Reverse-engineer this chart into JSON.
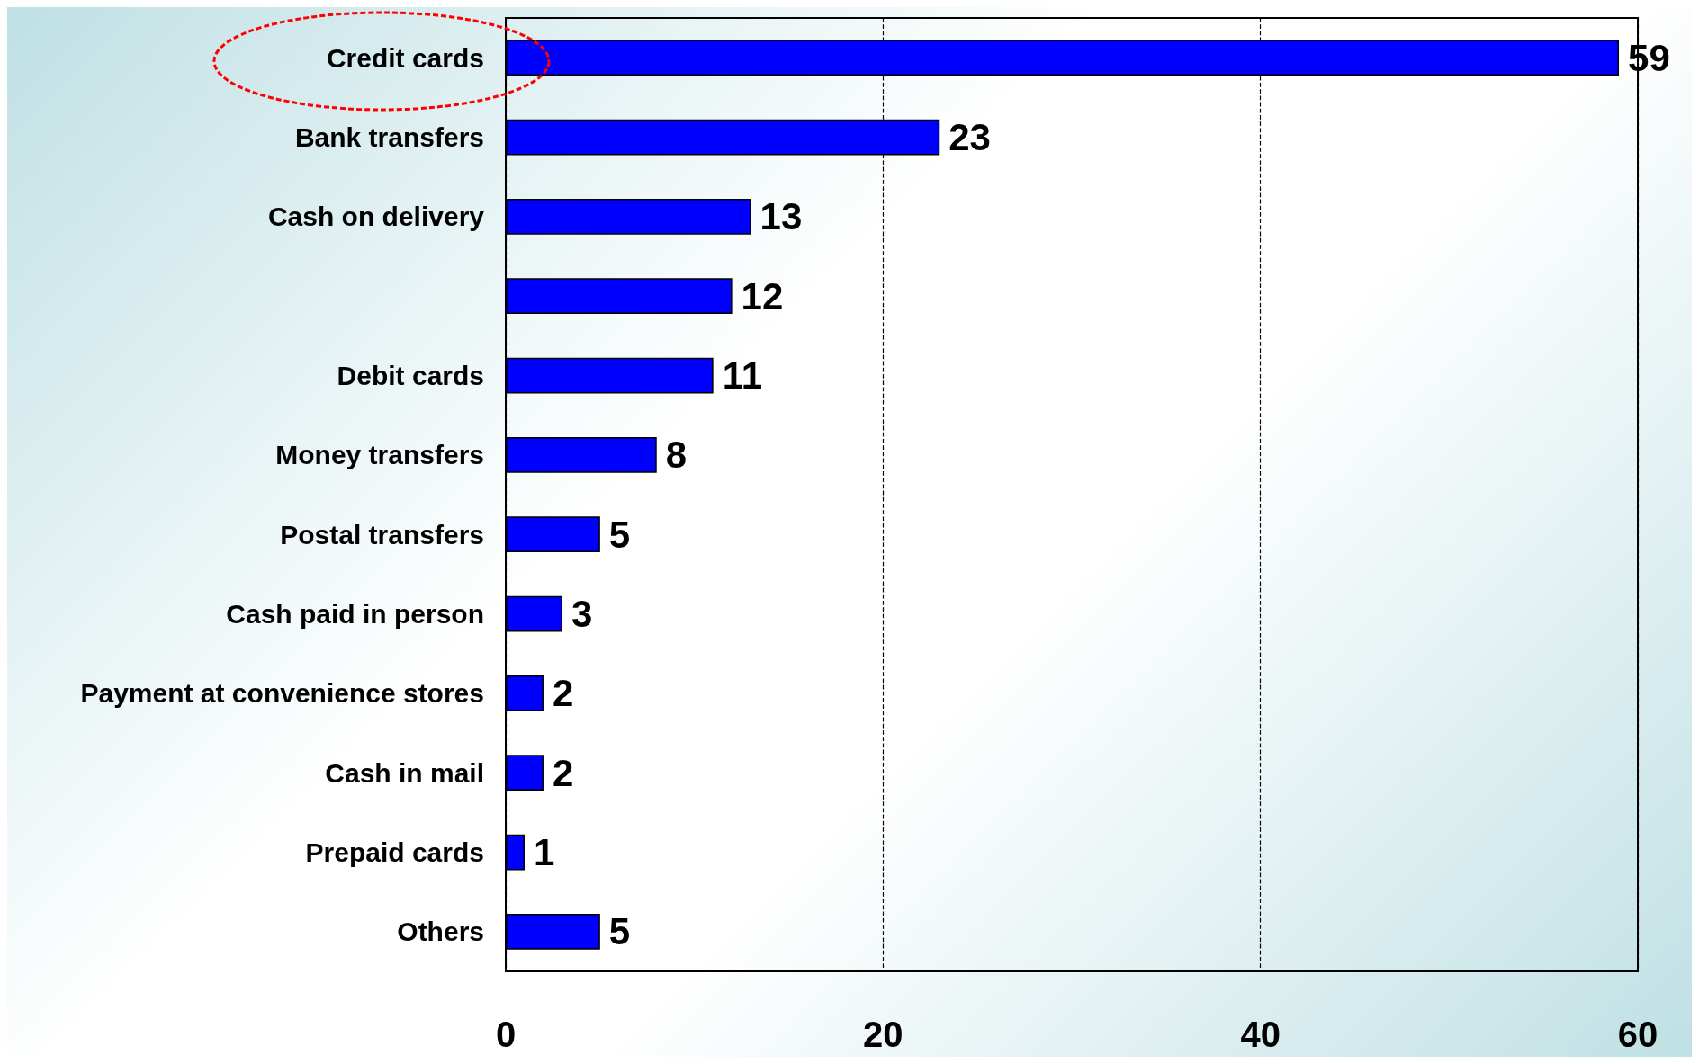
{
  "chart_data": {
    "type": "bar",
    "orientation": "horizontal",
    "categories": [
      "Credit cards",
      "Bank transfers",
      "Cash on delivery",
      null,
      "Debit cards",
      "Money transfers",
      "Postal transfers",
      "Cash paid in person",
      "Payment at convenience stores",
      "Cash in mail",
      "Prepaid cards",
      "Others"
    ],
    "values": [
      59,
      23,
      13,
      12,
      11,
      8,
      5,
      3,
      2,
      2,
      1,
      5
    ],
    "color": "#0000ff",
    "xlim": [
      0,
      60
    ],
    "xticks": [
      0,
      20,
      40,
      60
    ],
    "grid": "x",
    "data_labels": true
  }
}
